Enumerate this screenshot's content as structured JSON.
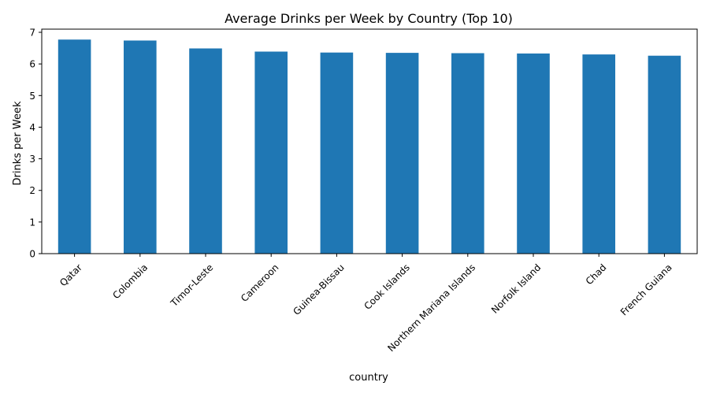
{
  "chart_data": {
    "type": "bar",
    "title": "Average Drinks per Week by Country (Top 10)",
    "xlabel": "country",
    "ylabel": "Drinks per Week",
    "categories": [
      "Qatar",
      "Colombia",
      "Timor-Leste",
      "Cameroon",
      "Guinea-Bissau",
      "Cook Islands",
      "Northern Mariana Islands",
      "Norfolk Island",
      "Chad",
      "French Guiana"
    ],
    "values": [
      6.77,
      6.74,
      6.49,
      6.39,
      6.36,
      6.35,
      6.34,
      6.33,
      6.3,
      6.26
    ],
    "ylim": [
      0,
      7.1
    ],
    "yticks": [
      0,
      1,
      2,
      3,
      4,
      5,
      6,
      7
    ],
    "bar_color": "#1f77b4",
    "grid": false,
    "legend": "none"
  }
}
